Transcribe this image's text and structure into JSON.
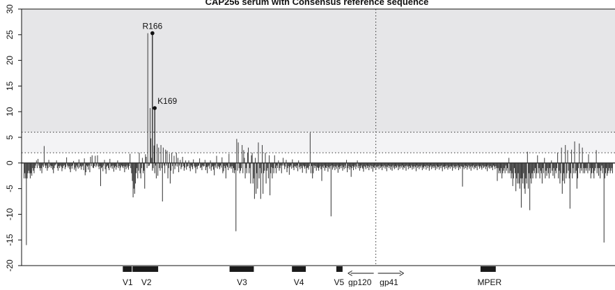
{
  "chart_data": {
    "type": "bar",
    "title": "CAP256 serum with Consensus reference sequence",
    "xlabel": "",
    "ylabel": "",
    "ylim": [
      -20,
      30
    ],
    "yticks": [
      -20,
      -15,
      -10,
      -5,
      0,
      5,
      10,
      15,
      20,
      25,
      30
    ],
    "xlim": [
      0,
      856
    ],
    "thresholds": [
      2,
      6
    ],
    "boundary_x": 511,
    "peaks": [
      {
        "label": "R166",
        "x": 166,
        "y": 25.3
      },
      {
        "label": "K169",
        "x": 169,
        "y": 10.7
      }
    ],
    "regions": [
      {
        "label": "V1",
        "start": 146,
        "end": 159,
        "label_x": 153
      },
      {
        "label": "V2",
        "start": 160,
        "end": 197,
        "label_x": 180
      },
      {
        "label": "V3",
        "start": 300,
        "end": 335,
        "label_x": 318
      },
      {
        "label": "V4",
        "start": 390,
        "end": 410,
        "label_x": 400
      },
      {
        "label": "V5",
        "start": 454,
        "end": 463,
        "label_x": 458
      },
      {
        "label": "MPER",
        "start": 662,
        "end": 684,
        "label_x": 675
      }
    ],
    "region_labels_gp": {
      "left": "gp120",
      "right": "gp41",
      "left_x": 488,
      "right_x": 530
    },
    "series": [
      {
        "values": [
          -3,
          -2,
          -3,
          -16,
          -3,
          -2,
          -1.5,
          -2,
          -3,
          -2,
          -2.5,
          -1,
          -1.5,
          -2,
          -1,
          -0.5,
          0.5,
          -1,
          0.8,
          -0.5,
          -1,
          -1.5,
          -1,
          -2,
          -0.5,
          -0.8,
          3.3,
          -0.5,
          -1,
          -0.5,
          -1.5,
          -1,
          0.6,
          -0.8,
          -0.5,
          -1,
          -0.6,
          -1.3,
          -2,
          -1,
          -0.5,
          -0.3,
          0.5,
          -1,
          -1.5,
          -0.6,
          -1,
          -0.5,
          -0.7,
          -1.6,
          -1,
          -0.6,
          -0.4,
          -1.2,
          -0.8,
          1.1,
          -0.5,
          -0.9,
          -0.6,
          -1.2,
          -1.8,
          -0.6,
          -1.1,
          -0.5,
          0.4,
          -1.3,
          -0.9,
          -1.6,
          -0.5,
          -0.8,
          -1.1,
          0.7,
          -0.9,
          -0.6,
          -1.3,
          -0.7,
          -0.5,
          -1.4,
          0.9,
          -2.4,
          -1.8,
          -0.5,
          -0.7,
          -1.3,
          -0.5,
          -1.8,
          1.2,
          -0.6,
          1.5,
          -0.9,
          -1,
          -0.6,
          1.4,
          -0.8,
          -0.5,
          1.5,
          -0.7,
          -1.2,
          -0.6,
          -4.5,
          -1,
          -0.8,
          -1.6,
          -0.5,
          0.6,
          -1.2,
          -2.1,
          -0.7,
          -0.5,
          -1,
          -1.4,
          0.8,
          -0.9,
          -0.6,
          -1.1,
          -0.5,
          -1.7,
          -0.9,
          -0.6,
          -1.3,
          -0.8,
          0.5,
          -1,
          -0.6,
          -1.5,
          -0.9,
          -0.5,
          -0.7,
          -1,
          -0.6,
          -1.8,
          -0.7,
          -1.2,
          -0.5,
          -0.9,
          -1.3,
          -0.6,
          1.8,
          -1,
          -2,
          -3.5,
          -6.7,
          -5,
          -6,
          -4,
          -2,
          -1,
          -3,
          -1.5,
          2,
          -2,
          -3,
          -1,
          1,
          -2,
          -1.5,
          -5,
          1.7,
          1.2,
          -1,
          25.3,
          -0.6,
          -0.5,
          10.7,
          4.8,
          1,
          -1.5,
          -1,
          3.4,
          -2,
          -0.5,
          -3,
          3.7,
          -2.5,
          3,
          -1,
          -1.5,
          3.5,
          -1,
          -7.5,
          3,
          -0.5,
          -2,
          2.6,
          -0.5,
          2.4,
          -3,
          -1,
          1.8,
          -4,
          -1.5,
          2,
          -0.6,
          -2.1,
          1.4,
          -1.2,
          -0.5,
          2,
          -0.7,
          1,
          -1.8,
          -0.5,
          0.6,
          -1.2,
          -0.8,
          1.2,
          -0.6,
          -1.5,
          -0.9,
          0.5,
          -1.3,
          -0.7,
          -0.6,
          0.5,
          -1,
          -1.6,
          -0.5,
          -0.8,
          -1.2,
          0.7,
          -0.6,
          -0.9,
          -2,
          -0.7,
          -1.2,
          -0.6,
          -0.5,
          0.9,
          -1,
          -0.8,
          -1.4,
          -0.5,
          -0.7,
          -0.6,
          0.6,
          -1.4,
          -0.8,
          -2,
          -0.7,
          -0.5,
          -1.1,
          0.5,
          -1.5,
          -0.8,
          -0.6,
          -1.3,
          -2.4,
          -0.5,
          -0.9,
          1.4,
          -1.1,
          -0.6,
          -0.8,
          -1.2,
          -0.5,
          -0.9,
          1.1,
          -2,
          -1.6,
          -0.6,
          -1,
          -3,
          -0.5,
          -0.8,
          -1.4,
          1.8,
          -1,
          -0.7,
          -1.1,
          -0.6,
          -1.9,
          -1,
          -2,
          -1.4,
          -13.3,
          4.7,
          -1.5,
          4,
          -1,
          -2,
          -1.5,
          -1,
          3.5,
          -2,
          2.5,
          1,
          -3,
          -1,
          -2,
          2,
          3,
          -2,
          -1,
          -4,
          1.5,
          2,
          -4,
          -3,
          -7,
          1,
          -6,
          -2,
          -5,
          4,
          -3,
          -1,
          -7,
          -2,
          3.5,
          -6,
          -2,
          -1.5,
          2,
          -4,
          -1.5,
          -1,
          -3,
          1.5,
          -6.3,
          -2,
          -0.8,
          -3,
          -1,
          -2,
          1.5,
          -1,
          -2,
          -0.5,
          -1,
          0.5,
          -1.5,
          -1,
          -0.5,
          -2,
          -0.5,
          1,
          -0.5,
          -1.2,
          -0.7,
          0.6,
          -1.8,
          -1,
          -0.6,
          -2.3,
          -0.8,
          -0.5,
          -1.1,
          0.7,
          -0.9,
          -1.4,
          -0.6,
          -0.7,
          -1,
          -0.5,
          -1.6,
          0.5,
          -0.8,
          -1.2,
          -0.6,
          -1,
          -1.9,
          -0.5,
          -0.7,
          -1.1,
          -0.6,
          -2,
          -1,
          -0.9,
          -1.3,
          -0.6,
          5.9,
          -2,
          -0.6,
          -3,
          -2,
          -0.5,
          -1,
          -0.6,
          -1.5,
          -0.8,
          -1,
          -1.5,
          -0.9,
          -0.6,
          -1.2,
          -3.5,
          -0.7,
          -1,
          -0.5,
          -1.5,
          -0.9,
          -1,
          -0.6,
          -1.7,
          -0.8,
          -1.1,
          -0.6,
          -10.4,
          -0.5,
          -1.3,
          -0.9,
          -0.6,
          -1.4,
          -0.7,
          -1.1,
          -0.5,
          -1.9,
          -0.8,
          -1.2,
          -0.6,
          -1,
          -0.5,
          -1.5,
          -0.8,
          -1.2,
          -0.5,
          -1,
          0.6,
          -1.8,
          -1,
          -0.6,
          -1.3,
          -0.8,
          -2.7,
          -1,
          -0.6,
          -1.4,
          -0.8,
          -0.5,
          -1.2,
          -0.7,
          0.5,
          -1,
          -0.6,
          -1.5,
          -1,
          -0.5,
          -0.9,
          -1.1,
          -1.7,
          -0.6,
          -0.8,
          -1.2,
          -0.5,
          -1,
          -0.6,
          -1.4,
          -0.8,
          -0.5,
          -1.1,
          -0.6,
          -1.7,
          -0.8,
          -1,
          -0.5,
          -1.3,
          -0.7,
          -0.9,
          -0.6,
          -1.2,
          -0.5,
          -1,
          -0.7,
          -1.4,
          -0.6,
          -0.9,
          -0.5,
          -1.1,
          -0.7,
          -1.6,
          -0.8,
          -0.5,
          -1,
          -0.6,
          -1.3,
          -0.7,
          -1.5,
          -0.5,
          -0.9,
          -1.2,
          -0.6,
          -1,
          -0.8,
          -0.5,
          -1.4,
          -0.7,
          -1.1,
          -0.6,
          -0.9,
          -0.5,
          -1.3,
          -0.8,
          -1,
          -0.6,
          -1.5,
          -0.5,
          -0.7,
          -1.2,
          -0.6,
          -1,
          -0.9,
          -0.5,
          -1.3,
          -0.7,
          -1.1,
          -0.6,
          -0.8,
          -1.6,
          -0.5,
          -1,
          -0.7,
          -1.2,
          -0.6,
          -0.9,
          -0.5,
          -1.4,
          -0.8,
          -1.1,
          -0.6,
          -0.7,
          -1.3,
          -0.5,
          -1,
          -0.6,
          -1.5,
          -0.8,
          -0.5,
          -1.2,
          -0.7,
          -1,
          -0.6,
          -0.9,
          -1.4,
          -0.5,
          -1.1,
          -0.7,
          -0.8,
          -1.3,
          -0.6,
          -1,
          -0.5,
          -1.6,
          -0.8,
          -0.7,
          -1.2,
          -0.6,
          -1,
          -0.5,
          -1.3,
          -0.9,
          -0.7,
          -1.1,
          -0.6,
          -0.8,
          -1.5,
          -0.5,
          -1,
          -0.7,
          -1.2,
          -0.6,
          -0.9,
          -0.5,
          -1.4,
          -0.8,
          -1.1,
          -0.6,
          -0.7,
          -4.6,
          -0.8,
          -1.2,
          -0.5,
          -1,
          -0.6,
          -1.3,
          -0.8,
          -0.5,
          -1.1,
          -0.7,
          -1.5,
          -0.6,
          -0.9,
          -0.5,
          -1.2,
          -0.8,
          -1,
          -0.6,
          -1.4,
          -0.5,
          -0.7,
          -1.1,
          -0.6,
          -0.9,
          -1.3,
          -0.5,
          -1,
          -0.8,
          -0.6,
          -1.2,
          -0.7,
          -1.6,
          -0.5,
          -0.9,
          -1.1,
          -0.6,
          -1,
          -0.8,
          -1.4,
          -0.5,
          -0.7,
          -1.2,
          -0.6,
          -1,
          -3.5,
          -1,
          -2,
          -1.5,
          -2,
          -1,
          -3,
          -2,
          -1.5,
          -1,
          -2,
          -0.5,
          -1.5,
          -1,
          -2,
          1,
          -2,
          -1.5,
          -3,
          -2,
          -4.5,
          -3,
          -1,
          -2,
          -5.5,
          -3,
          -4,
          -2,
          -4,
          -5,
          -3,
          -8.7,
          -3,
          -4,
          -2,
          -5,
          -6,
          -3,
          -4,
          2.2,
          -5,
          -2,
          -9.2,
          -3,
          -4,
          -2,
          -3,
          -1.5,
          -2,
          -1,
          -3,
          -2,
          1.5,
          -2,
          -1,
          -3,
          -1.5,
          -2,
          -4,
          -1,
          -2,
          1,
          -3,
          -1.5,
          -2.5,
          -1,
          -2,
          -3,
          -1,
          -2,
          0.5,
          -1.5,
          -2.5,
          -1,
          -3,
          -1.5,
          -2,
          -1,
          2,
          -3,
          -1.5,
          -4,
          -2,
          3,
          -6,
          -3.5,
          -2,
          -4,
          3.5,
          -3,
          -2,
          2.5,
          -1.5,
          -3,
          -8.9,
          -2,
          2.6,
          -3,
          -1,
          -2,
          4.2,
          -2,
          -1.5,
          -5,
          -3,
          -1,
          3.8,
          -2,
          -1,
          -1.5,
          3,
          -2,
          -1,
          -2,
          -1,
          -1.5,
          -1,
          -2,
          1.7,
          -1.5,
          -1,
          -3,
          -2,
          -1,
          -2,
          -3,
          -1.5,
          -1,
          2.5,
          -2,
          -1,
          -2.5,
          -1,
          -3,
          -1.5,
          -0.5,
          -2,
          -1,
          -15.5,
          -3,
          -2,
          -1,
          -2.5,
          -2,
          -1.5,
          -1,
          -2,
          -1.5,
          -1,
          -2
        ]
      }
    ]
  }
}
